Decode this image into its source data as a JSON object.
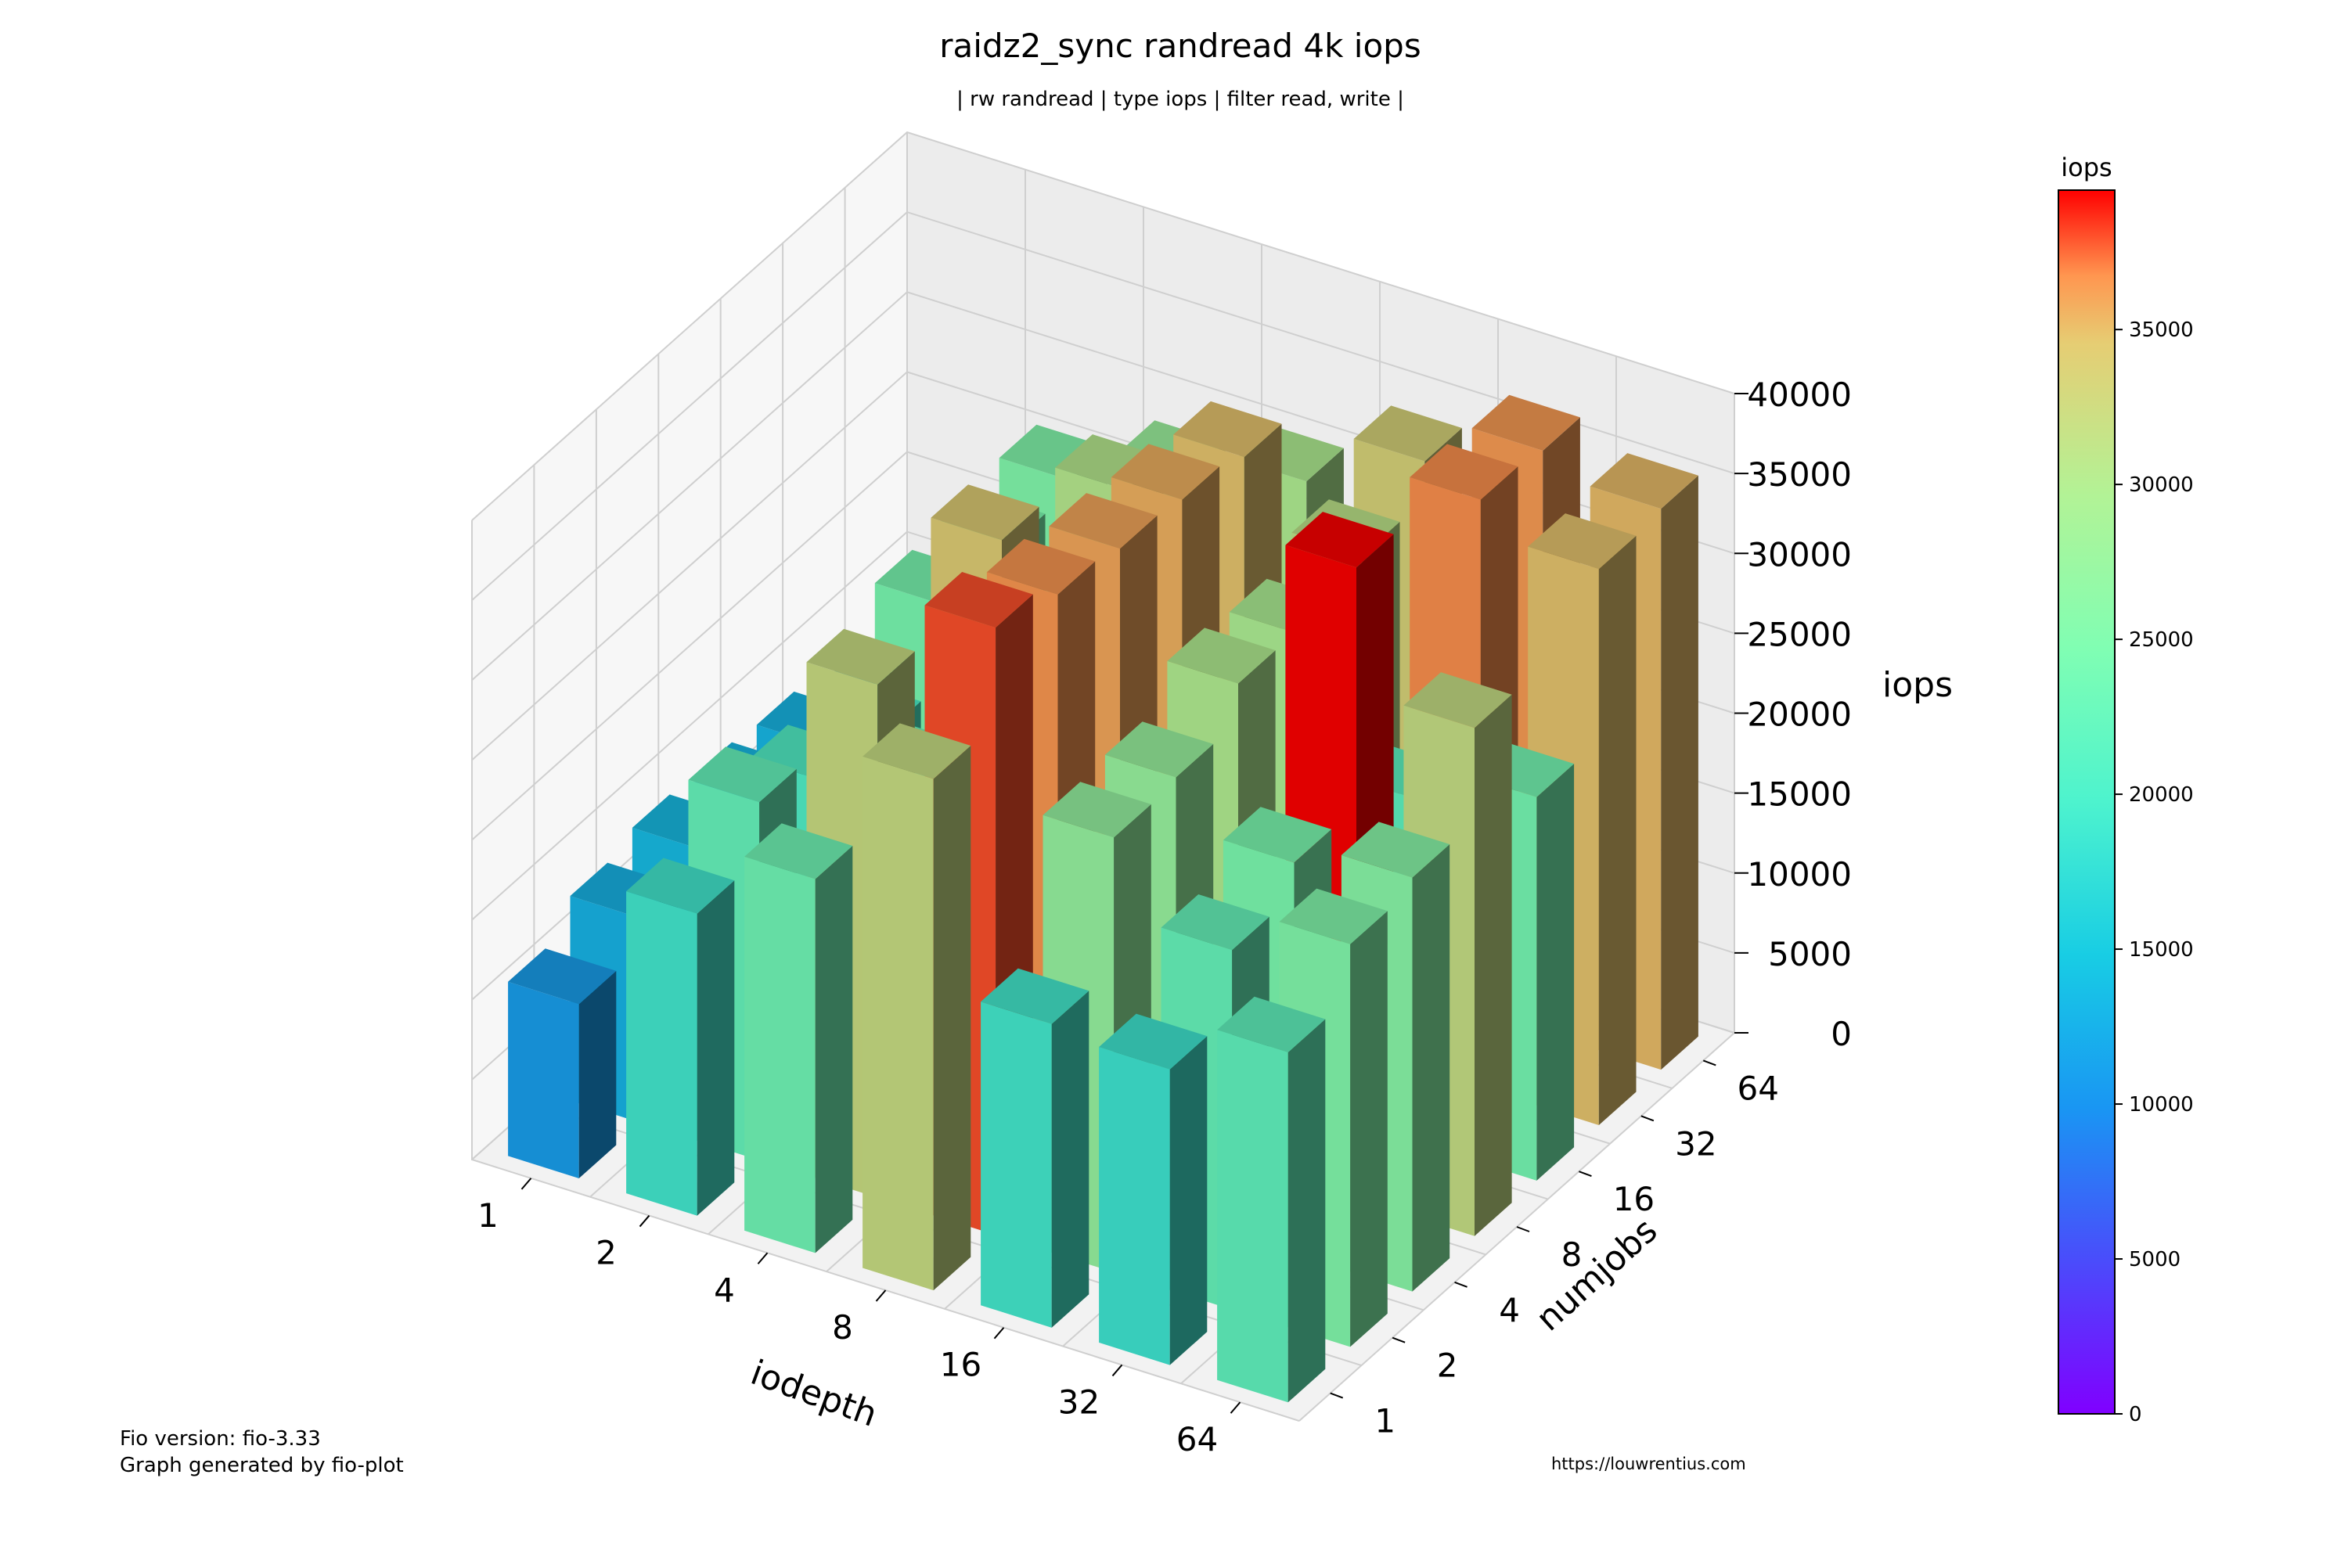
{
  "chart_data": {
    "type": "bar3d",
    "title": "raidz2_sync randread 4k iops",
    "subtitle": "| rw randread | type iops | filter read, write |",
    "xlabel": "iodepth",
    "ylabel": "numjobs",
    "zlabel": "iops",
    "x_categories": [
      "1",
      "2",
      "4",
      "8",
      "16",
      "32",
      "64"
    ],
    "y_categories": [
      "1",
      "2",
      "4",
      "8",
      "16",
      "32",
      "64"
    ],
    "zlim": [
      0,
      40000
    ],
    "z_ticks": [
      "0",
      "5000",
      "10000",
      "15000",
      "20000",
      "25000",
      "30000",
      "35000",
      "40000"
    ],
    "colorbar": {
      "title": "iops",
      "range": [
        0,
        39500
      ],
      "ticks": [
        "0",
        "5000",
        "10000",
        "15000",
        "20000",
        "25000",
        "30000",
        "35000"
      ]
    },
    "grid": true,
    "values_note_rows": "rows = numjobs (1,2,4,8,16,32,64); columns = iodepth (1,2,4,8,16,32,64)",
    "values": [
      [
        10900,
        18900,
        23400,
        32000,
        19000,
        18500,
        21900
      ],
      [
        12800,
        22400,
        32100,
        38000,
        27200,
        22500,
        25200
      ],
      [
        13600,
        20300,
        22700,
        36600,
        27500,
        24500,
        25900
      ],
      [
        13400,
        19700,
        34200,
        36000,
        29900,
        39500,
        31800
      ],
      [
        13100,
        24300,
        20700,
        35600,
        29500,
        21500,
        24000
      ],
      [
        12100,
        24500,
        30400,
        34800,
        31000,
        36800,
        34800
      ],
      [
        11700,
        25200,
        27800,
        29800,
        33400,
        36400,
        35100
      ]
    ]
  },
  "footer": {
    "fio_version": "Fio version: fio-3.33",
    "generated_by": "Graph generated by fio-plot",
    "credit": "https://louwrentius.com"
  }
}
